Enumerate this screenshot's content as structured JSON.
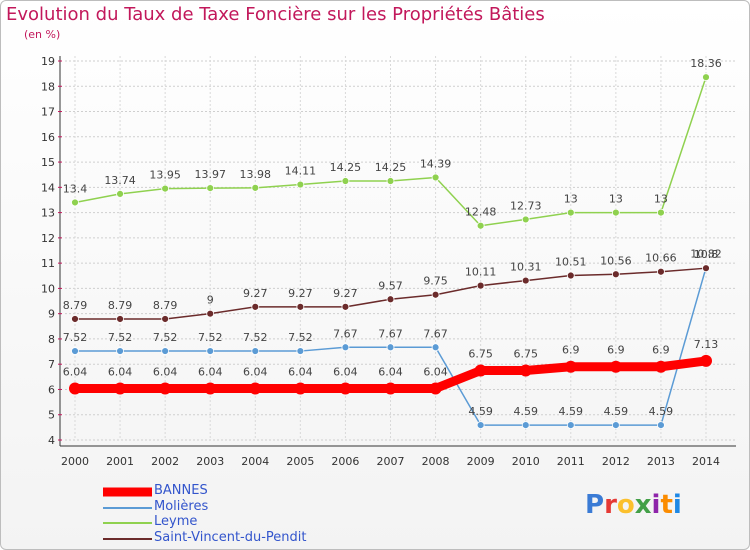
{
  "title": "Evolution du Taux de Taxe Foncière sur les Propriétés Bâties",
  "unit_label": "(en %)",
  "logo": {
    "text": "Proxiti",
    "letters": [
      {
        "ch": "P",
        "color": "#3a7bd5"
      },
      {
        "ch": "r",
        "color": "#e53935"
      },
      {
        "ch": "o",
        "color": "#fbc02d"
      },
      {
        "ch": "x",
        "color": "#43a047"
      },
      {
        "ch": "i",
        "color": "#8e24aa"
      },
      {
        "ch": "t",
        "color": "#fb8c00"
      },
      {
        "ch": "i",
        "color": "#1e88e5"
      }
    ]
  },
  "chart_data": {
    "type": "line",
    "title": "Evolution du Taux de Taxe Foncière sur les Propriétés Bâties",
    "ylabel": "(en %)",
    "xlabel": "",
    "ylim": [
      4,
      19
    ],
    "yticks": [
      4,
      5,
      6,
      7,
      8,
      9,
      10,
      11,
      12,
      13,
      14,
      15,
      16,
      17,
      18,
      19
    ],
    "categories": [
      "2000",
      "2001",
      "2002",
      "2003",
      "2004",
      "2005",
      "2006",
      "2007",
      "2008",
      "2009",
      "2010",
      "2011",
      "2012",
      "2013",
      "2014"
    ],
    "series": [
      {
        "name": "BANNES",
        "color": "#ff0000",
        "values": [
          6.04,
          6.04,
          6.04,
          6.04,
          6.04,
          6.04,
          6.04,
          6.04,
          6.04,
          6.75,
          6.75,
          6.9,
          6.9,
          6.9,
          7.13
        ],
        "labels": [
          "6.04",
          "6.04",
          "6.04",
          "6.04",
          "6.04",
          "6.04",
          "6.04",
          "6.04",
          "6.04",
          "6.75",
          "6.75",
          "6.9",
          "6.9",
          "6.9",
          "7.13"
        ]
      },
      {
        "name": "Molières",
        "color": "#5b9bd5",
        "values": [
          7.52,
          7.52,
          7.52,
          7.52,
          7.52,
          7.52,
          7.67,
          7.67,
          7.67,
          4.59,
          4.59,
          4.59,
          4.59,
          4.59,
          10.82
        ],
        "labels": [
          "7.52",
          "7.52",
          "7.52",
          "7.52",
          "7.52",
          "7.52",
          "7.67",
          "7.67",
          "7.67",
          "4.59",
          "4.59",
          "4.59",
          "4.59",
          "4.59",
          "10.82"
        ]
      },
      {
        "name": "Leyme",
        "color": "#8fd14f",
        "values": [
          13.4,
          13.74,
          13.95,
          13.97,
          13.98,
          14.11,
          14.25,
          14.25,
          14.39,
          12.48,
          12.73,
          13,
          13,
          13,
          18.36
        ],
        "labels": [
          "13.4",
          "13.74",
          "13.95",
          "13.97",
          "13.98",
          "14.11",
          "14.25",
          "14.25",
          "14.39",
          "12.48",
          "12.73",
          "13",
          "13",
          "13",
          "18.36"
        ]
      },
      {
        "name": "Saint-Vincent-du-Pendit",
        "color": "#6b2b2b",
        "values": [
          8.79,
          8.79,
          8.79,
          9,
          9.27,
          9.27,
          9.27,
          9.57,
          9.75,
          10.11,
          10.31,
          10.51,
          10.56,
          10.66,
          10.8
        ],
        "labels": [
          "8.79",
          "8.79",
          "8.79",
          "9",
          "9.27",
          "9.27",
          "9.27",
          "9.57",
          "9.75",
          "10.11",
          "10.31",
          "10.51",
          "10.56",
          "10.66",
          "10.8"
        ]
      }
    ]
  }
}
